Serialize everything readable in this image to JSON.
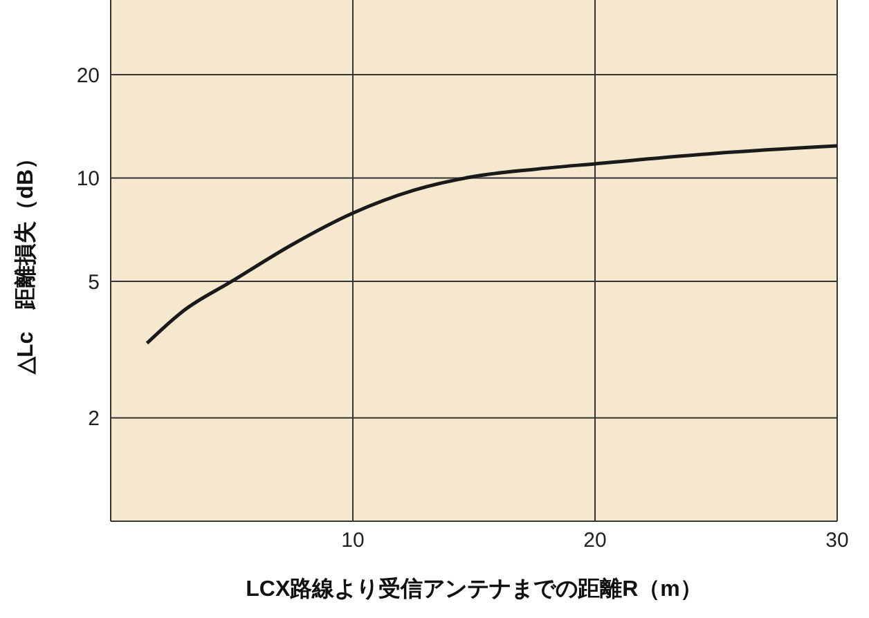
{
  "chart_data": {
    "type": "line",
    "xlabel": "LCX路線より受信アンテナまでの距離R（m）",
    "ylabel": "△Lc　距離損失（dB）",
    "series": [
      {
        "color": "#1a1a1a",
        "x": [
          1.5,
          3,
          5,
          7.5,
          10,
          12.5,
          15,
          17.5,
          20,
          25,
          30
        ],
        "values": [
          3.3,
          4.1,
          5,
          6.4,
          7.9,
          9.2,
          10.1,
          10.6,
          11,
          11.8,
          12.4
        ]
      }
    ],
    "xlim": [
      0,
      30
    ],
    "xticks": [
      10,
      20,
      30
    ],
    "ylim": [
      1,
      33
    ],
    "yticks": [
      2,
      5,
      10,
      20
    ],
    "log": "y",
    "grid": true,
    "marker": "none",
    "line_style": "solid"
  }
}
